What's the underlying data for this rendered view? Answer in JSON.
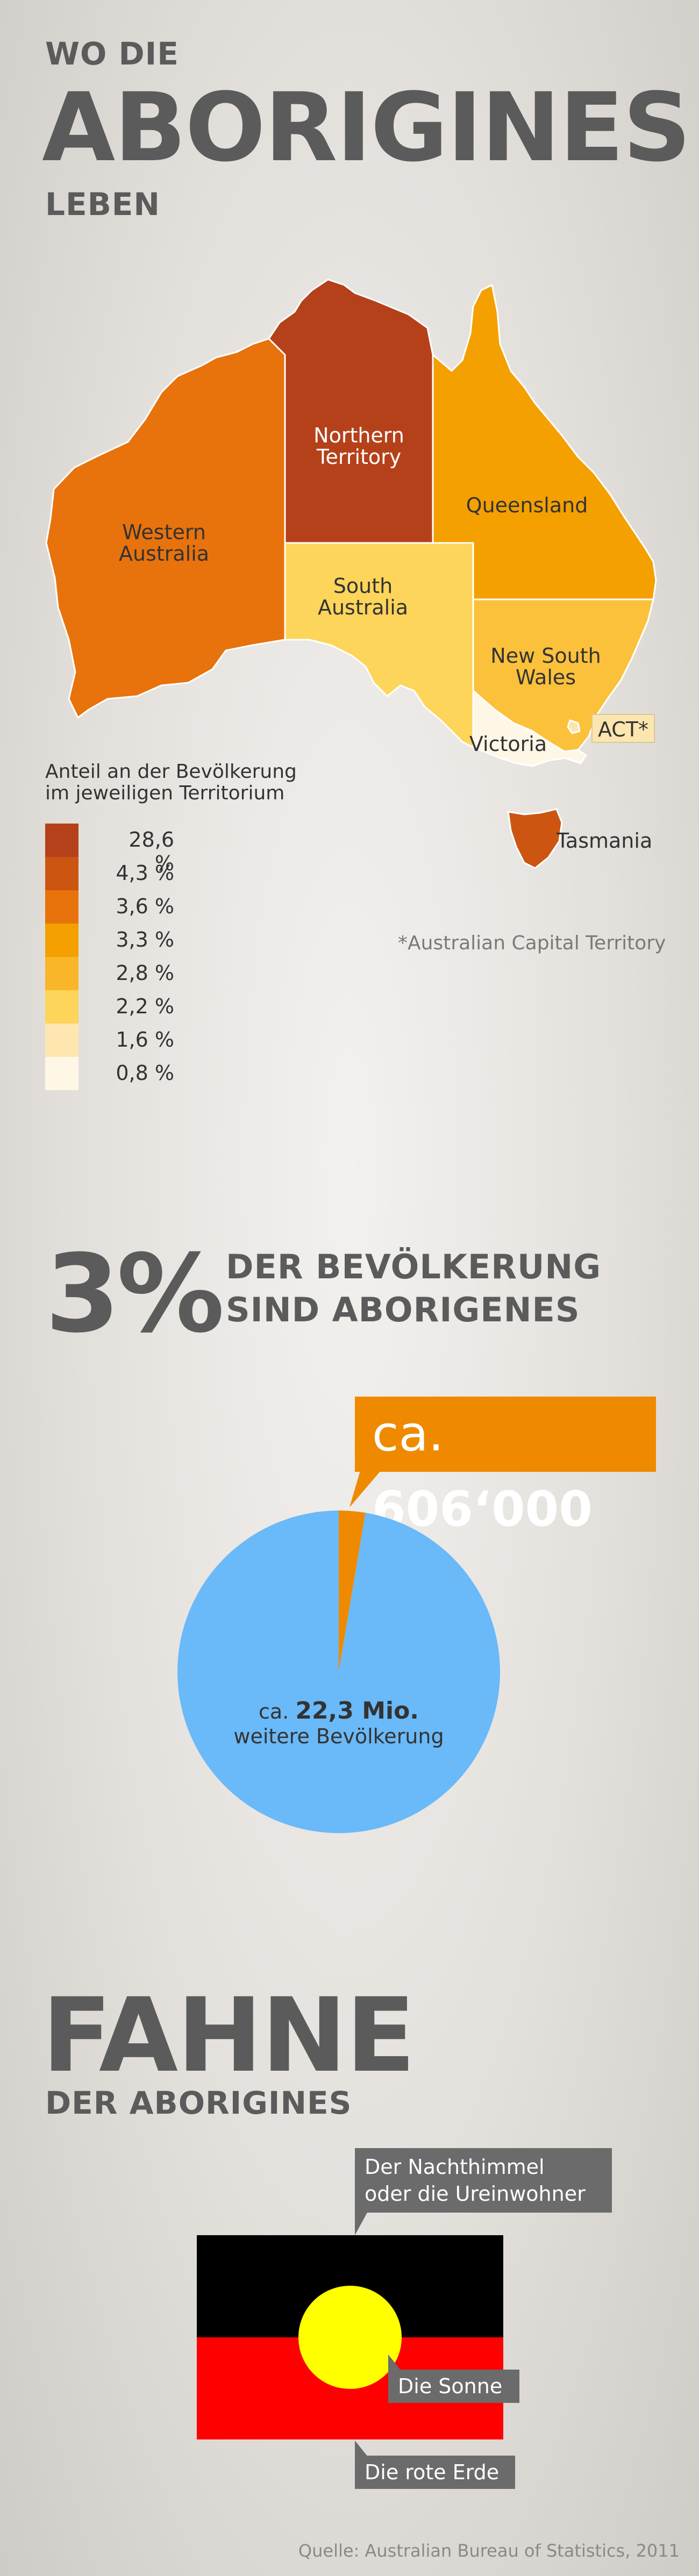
{
  "title": {
    "line1": "WO DIE",
    "line2": "ABORIGINES",
    "line3": "LEBEN"
  },
  "map": {
    "regions": {
      "western_australia": "Western\nAustralia",
      "northern_territory": "Northern\nTerritory",
      "queensland": "Queensland",
      "south_australia": "South\nAustralia",
      "new_south_wales": "New South\nWales",
      "victoria": "Victoria",
      "act": "ACT*",
      "tasmania": "Tasmania"
    },
    "colors": {
      "northern_territory": "#b5411a",
      "tasmania": "#cc5512",
      "western_australia": "#e8720c",
      "queensland": "#f3a000",
      "south_australia": "#fdd55a",
      "new_south_wales": "#fbc13b",
      "act": "#fce6b0",
      "victoria": "#fef7e6"
    },
    "footnote": "*Australian Capital Territory"
  },
  "legend": {
    "title": "Anteil an der Bevölkerung\nim jeweiligen Territorium",
    "items": [
      {
        "value": "28,6 %",
        "color": "#b5411a"
      },
      {
        "value": "4,3 %",
        "color": "#cc5512"
      },
      {
        "value": "3,6 %",
        "color": "#e8720c"
      },
      {
        "value": "3,3 %",
        "color": "#f3a000"
      },
      {
        "value": "2,8 %",
        "color": "#f8b628"
      },
      {
        "value": "2,2 %",
        "color": "#fdd55a"
      },
      {
        "value": "1,6 %",
        "color": "#fde6b0"
      },
      {
        "value": "0,8 %",
        "color": "#fef7e6"
      }
    ]
  },
  "population": {
    "percent": "3%",
    "line1": "DER BEVÖLKERUNG",
    "line2": "SIND ABORIGENES",
    "callout_prefix": "ca.",
    "callout_value": "606‘000",
    "pie_prefix": "ca.",
    "pie_value": "22,3 Mio.",
    "pie_caption": "weitere Bevölkerung",
    "colors": {
      "aborigines": "#ef8a00",
      "rest": "#6ab9f8"
    }
  },
  "chart_data": {
    "type": "pie",
    "slices": [
      {
        "label": "ca. 606‘000",
        "value": 606000,
        "color": "#ef8a00"
      },
      {
        "label": "ca. 22,3 Mio. weitere Bevölkerung",
        "value": 22300000,
        "color": "#6ab9f8"
      }
    ]
  },
  "flag": {
    "heading": "FAHNE",
    "subheading": "DER ABORIGINES",
    "callouts": {
      "top": "Der Nachthimmel\noder die Ureinwohner",
      "sun": "Die Sonne",
      "earth": "Die rote Erde"
    },
    "colors": {
      "top": "#000000",
      "bottom": "#ff0000",
      "sun": "#ffff00"
    }
  },
  "source": "Quelle: Australian Bureau of Statistics, 2011"
}
